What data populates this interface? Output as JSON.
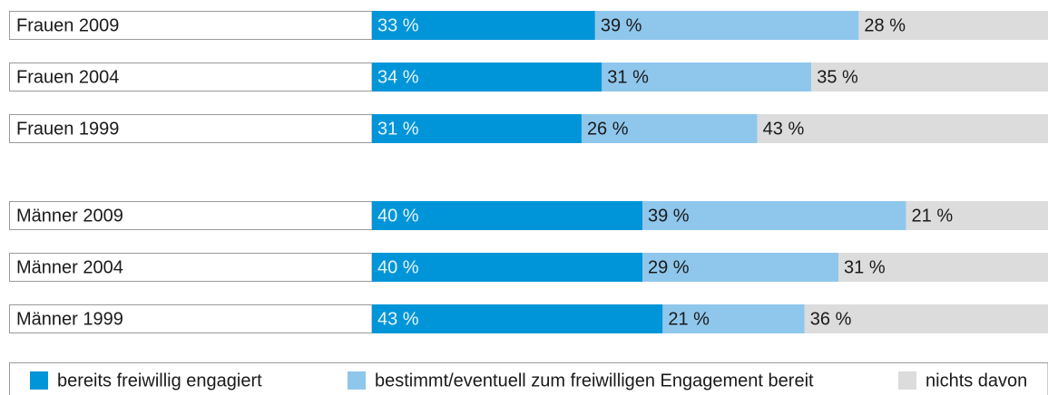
{
  "chart_data": {
    "type": "bar",
    "orientation": "horizontal",
    "stacked": true,
    "categories": [
      "Frauen 2009",
      "Frauen 2004",
      "Frauen 1999",
      "Männer 2009",
      "Männer 2004",
      "Männer 1999"
    ],
    "xlim": [
      0,
      100
    ],
    "series": [
      {
        "name": "bereits freiwillig engagiert",
        "color": "#0095d8",
        "values": [
          33,
          34,
          31,
          40,
          40,
          43
        ],
        "value_labels": [
          "33 %",
          "34 %",
          "31 %",
          "40 %",
          "40 %",
          "43 %"
        ]
      },
      {
        "name": "bestimmt/eventuell zum freiwilligen Engagement bereit",
        "color": "#8fc7ec",
        "values": [
          39,
          31,
          26,
          39,
          29,
          21
        ],
        "value_labels": [
          "39 %",
          "31 %",
          "26 %",
          "39 %",
          "29 %",
          "21 %"
        ]
      },
      {
        "name": "nichts davon",
        "color": "#dcdcdc",
        "values": [
          28,
          35,
          43,
          21,
          31,
          36
        ],
        "value_labels": [
          "28 %",
          "35 %",
          "43 %",
          "21 %",
          "31 %",
          "36 %"
        ]
      }
    ],
    "legend": "bottom"
  }
}
